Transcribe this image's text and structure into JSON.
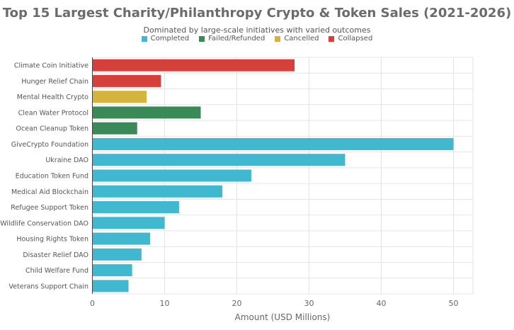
{
  "chart_data": {
    "type": "bar",
    "orientation": "horizontal",
    "title": "Top 15 Largest Charity/Philanthropy Crypto & Token Sales (2021-2026)",
    "subtitle": "Dominated by large-scale initiatives with varied outcomes",
    "xlabel": "Amount (USD Millions)",
    "ylabel": "",
    "xlim": [
      0,
      52.5
    ],
    "xticks": [
      0,
      10,
      20,
      30,
      40,
      50
    ],
    "grid": true,
    "legend_position": "top-center",
    "legend": [
      {
        "name": "Completed",
        "color": "#3fb8d0"
      },
      {
        "name": "Failed/Refunded",
        "color": "#3a8a57"
      },
      {
        "name": "Cancelled",
        "color": "#d4b43c"
      },
      {
        "name": "Collapsed",
        "color": "#d6403a"
      }
    ],
    "categories": [
      "Climate Coin Initiative",
      "Hunger Relief Chain",
      "Mental Health Crypto",
      "Clean Water Protocol",
      "Ocean Cleanup Token",
      "GiveCrypto Foundation",
      "Ukraine DAO",
      "Education Token Fund",
      "Medical Aid Blockchain",
      "Refugee Support Token",
      "Wildlife Conservation DAO",
      "Housing Rights Token",
      "Disaster Relief DAO",
      "Child Welfare Fund",
      "Veterans Support Chain"
    ],
    "values": [
      28,
      9.5,
      7.5,
      15,
      6.2,
      50,
      35,
      22,
      18,
      12,
      10,
      8,
      6.8,
      5.5,
      5
    ],
    "status": [
      "Collapsed",
      "Collapsed",
      "Cancelled",
      "Failed/Refunded",
      "Failed/Refunded",
      "Completed",
      "Completed",
      "Completed",
      "Completed",
      "Completed",
      "Completed",
      "Completed",
      "Completed",
      "Completed",
      "Completed"
    ]
  }
}
